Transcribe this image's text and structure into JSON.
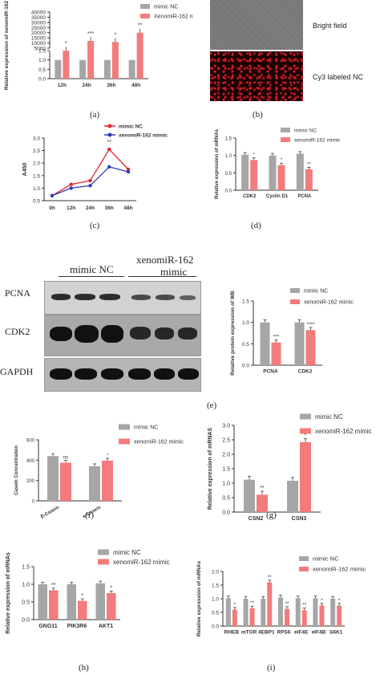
{
  "labels": {
    "a": "(a)",
    "b": "(b)",
    "c": "(c)",
    "d": "(d)",
    "e": "(e)",
    "f": "(f)",
    "g": "(g)",
    "h": "(h)",
    "i": "(i)"
  },
  "image_b": {
    "bright": "Bright field",
    "cy3": "Cy3 labeled NC"
  },
  "western": {
    "group1": "mimic NC",
    "group2_line1": "xenomiR-162",
    "group2_line2": "mimic",
    "rows": [
      "PCNA",
      "CDK2",
      "GAPDH"
    ]
  },
  "colors": {
    "nc": "#a6a6a6",
    "mimic": "#f37b7b",
    "line_nc": "#e0262c",
    "line_mimic": "#2b3fb8"
  },
  "chart_data": [
    {
      "id": "a",
      "type": "bar",
      "ylabel": "Relative expression of xenomiR-162",
      "categories": [
        "12h",
        "24h",
        "36h",
        "48h"
      ],
      "series": [
        {
          "name": "mimic NC",
          "values": [
            1,
            1,
            1,
            1
          ]
        },
        {
          "name": "XenomiR-162 mimic",
          "values": [
            2500,
            12000,
            11000,
            20000
          ]
        }
      ],
      "yticks": [
        "0.0",
        "0.5",
        "1.0",
        "1.5",
        "5000",
        "10000",
        "15000",
        "20000",
        "25000",
        "30000",
        "35000",
        "40000"
      ],
      "sig": [
        "*",
        "***",
        "*",
        "**"
      ]
    },
    {
      "id": "c",
      "type": "line",
      "ylabel": "A450",
      "categories": [
        "0h",
        "12h",
        "24h",
        "36h",
        "48h"
      ],
      "yticks": [
        "1.0",
        "1.5",
        "2.0",
        "2.5",
        "3.0",
        "0.5"
      ],
      "ylim": [
        0.5,
        3.0
      ],
      "series": [
        {
          "name": "mimic NC",
          "values": [
            0.7,
            1.15,
            1.3,
            2.55,
            1.75
          ]
        },
        {
          "name": "xenomiR-162 mimic",
          "values": [
            0.7,
            1.0,
            1.1,
            1.85,
            1.65
          ]
        }
      ],
      "sig": [
        "",
        "",
        "",
        "**",
        ""
      ]
    },
    {
      "id": "d",
      "type": "bar",
      "ylabel": "Relative expression of mRNAs",
      "categories": [
        "CDK2",
        "Cyclin D1",
        "PCNA"
      ],
      "yticks": [
        "0.0",
        "0.5",
        "1.0",
        "1.5"
      ],
      "ylim": [
        0,
        1.5
      ],
      "series": [
        {
          "name": "mimic NC",
          "values": [
            1.02,
            1.0,
            1.05
          ]
        },
        {
          "name": "xenomiR-162 mimic",
          "values": [
            0.87,
            0.72,
            0.6
          ]
        }
      ],
      "sig": [
        "*",
        "*",
        "**"
      ]
    },
    {
      "id": "e",
      "type": "bar",
      "ylabel": "Relative protein expression of WB",
      "categories": [
        "PCNA",
        "CDK2"
      ],
      "yticks": [
        "0.0",
        "0.5",
        "1.0",
        "1.5"
      ],
      "ylim": [
        0,
        1.5
      ],
      "series": [
        {
          "name": "mimic NC",
          "values": [
            1.0,
            1.0
          ]
        },
        {
          "name": "xenomiR-162 mimic",
          "values": [
            0.53,
            0.82
          ]
        }
      ],
      "sig": [
        "***",
        "****"
      ]
    },
    {
      "id": "f",
      "type": "bar",
      "ylabel": "Casein Concentration",
      "categories": [
        "β-Casein",
        "κ-Casein"
      ],
      "yticks": [
        "0",
        "200",
        "400",
        "600"
      ],
      "ylim": [
        0,
        600
      ],
      "series": [
        {
          "name": "mimic NC",
          "values": [
            440,
            340
          ]
        },
        {
          "name": "xenomiR-162 mimic",
          "values": [
            375,
            395
          ]
        }
      ],
      "sig": [
        "ns",
        "*"
      ]
    },
    {
      "id": "g",
      "type": "bar",
      "ylabel": "Relative expression of mRNAS",
      "categories": [
        "CSN2",
        "CSN3"
      ],
      "yticks": [
        "0.0",
        "0.5",
        "1.0",
        "1.5",
        "2.0",
        "2.5",
        "3.0"
      ],
      "ylim": [
        0,
        3
      ],
      "series": [
        {
          "name": "mimic NC",
          "values": [
            1.12,
            1.08
          ]
        },
        {
          "name": "xenomiR-162 mimic",
          "values": [
            0.6,
            2.42
          ]
        }
      ],
      "sig": [
        "**",
        "*"
      ]
    },
    {
      "id": "h",
      "type": "bar",
      "ylabel": "Relative expression of mRNAs",
      "categories": [
        "GNG11",
        "PIK3R6",
        "AKT1"
      ],
      "yticks": [
        "0.0",
        "0.5",
        "1.0",
        "1.5"
      ],
      "ylim": [
        0,
        1.5
      ],
      "series": [
        {
          "name": "mimic NC",
          "values": [
            1.0,
            1.0,
            1.03
          ]
        },
        {
          "name": "xenomiR-162 mimic",
          "values": [
            0.83,
            0.53,
            0.75
          ]
        }
      ],
      "sig": [
        "**",
        "*",
        "*"
      ]
    },
    {
      "id": "i",
      "type": "bar",
      "ylabel": "Relative expression of mRNAs",
      "categories": [
        "RHEB",
        "mTOR",
        "4EBP1",
        "RPS6",
        "eIF4E",
        "eIF4B",
        "S6K1"
      ],
      "yticks": [
        "0.0",
        "0.5",
        "1.0",
        "1.5",
        "2.0"
      ],
      "ylim": [
        0,
        2
      ],
      "series": [
        {
          "name": "mimic NC",
          "values": [
            1.02,
            1.0,
            1.0,
            1.05,
            1.02,
            1.02,
            1.0
          ]
        },
        {
          "name": "xenomiR-162 mimic",
          "values": [
            0.6,
            0.65,
            1.6,
            0.63,
            0.58,
            0.75,
            0.75
          ]
        }
      ],
      "sig": [
        "*",
        "**",
        "**",
        "**",
        "**",
        "*",
        "*"
      ]
    }
  ]
}
